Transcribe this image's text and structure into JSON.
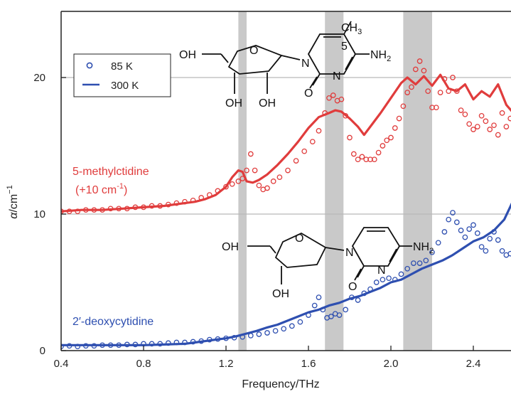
{
  "chart_data": {
    "type": "scatter",
    "xlabel": "Frequency/THz",
    "ylabel_main": "α",
    "ylabel_unit": "/cm",
    "ylabel_exp": "−1",
    "xlim": [
      0.4,
      2.6
    ],
    "ylim": [
      0,
      25
    ],
    "x_ticks": [
      0.4,
      0.8,
      1.2,
      1.6,
      2.0,
      2.4
    ],
    "y_ticks": [
      0,
      10,
      20
    ],
    "gridlines_y": [
      10,
      20
    ],
    "shaded_bands": [
      [
        1.26,
        1.3
      ],
      [
        1.68,
        1.77
      ],
      [
        2.06,
        2.2
      ]
    ],
    "legend": {
      "placement": "top-left",
      "entries": [
        {
          "label": "85 K",
          "marker": "circle"
        },
        {
          "label": "300 K",
          "marker": "line"
        }
      ]
    },
    "series": [
      {
        "label": "5-methylctidine",
        "label_note_prefix": "(+10 cm",
        "label_note_exp": "-1",
        "label_note_suffix": ")",
        "color": "#e03c3c",
        "temperature": "300 K",
        "style": "line",
        "x": [
          0.4,
          0.5,
          0.6,
          0.7,
          0.8,
          0.9,
          1.0,
          1.05,
          1.1,
          1.15,
          1.2,
          1.23,
          1.26,
          1.28,
          1.3,
          1.33,
          1.36,
          1.4,
          1.45,
          1.5,
          1.55,
          1.6,
          1.65,
          1.7,
          1.73,
          1.76,
          1.8,
          1.84,
          1.87,
          1.9,
          1.95,
          2.0,
          2.05,
          2.08,
          2.12,
          2.16,
          2.2,
          2.24,
          2.28,
          2.32,
          2.36,
          2.4,
          2.44,
          2.48,
          2.52,
          2.56,
          2.6
        ],
        "y": [
          10.2,
          10.3,
          10.3,
          10.4,
          10.5,
          10.6,
          10.8,
          10.9,
          11.1,
          11.4,
          12.0,
          12.7,
          13.2,
          13.1,
          12.4,
          12.3,
          12.5,
          12.9,
          13.6,
          14.4,
          15.3,
          16.3,
          17.1,
          17.4,
          17.6,
          17.5,
          17.0,
          16.4,
          15.8,
          16.4,
          17.4,
          18.5,
          19.6,
          20.0,
          19.5,
          20.1,
          19.4,
          20.2,
          19.2,
          19.0,
          19.5,
          18.4,
          19.0,
          18.6,
          19.5,
          18.0,
          17.3
        ]
      },
      {
        "label": "5-methylctidine 85 K",
        "color": "#e03c3c",
        "temperature": "85 K",
        "style": "circle",
        "x": [
          0.4,
          0.44,
          0.48,
          0.52,
          0.56,
          0.6,
          0.64,
          0.68,
          0.72,
          0.76,
          0.8,
          0.84,
          0.88,
          0.92,
          0.96,
          1.0,
          1.04,
          1.08,
          1.12,
          1.16,
          1.2,
          1.23,
          1.26,
          1.28,
          1.3,
          1.32,
          1.34,
          1.36,
          1.38,
          1.4,
          1.43,
          1.46,
          1.5,
          1.54,
          1.58,
          1.62,
          1.65,
          1.68,
          1.7,
          1.72,
          1.74,
          1.76,
          1.78,
          1.8,
          1.82,
          1.84,
          1.86,
          1.88,
          1.9,
          1.92,
          1.94,
          1.96,
          1.98,
          2.0,
          2.02,
          2.04,
          2.06,
          2.08,
          2.1,
          2.12,
          2.14,
          2.16,
          2.18,
          2.2,
          2.22,
          2.24,
          2.26,
          2.28,
          2.3,
          2.32,
          2.34,
          2.36,
          2.38,
          2.4,
          2.42,
          2.44,
          2.46,
          2.48,
          2.5,
          2.52,
          2.54,
          2.56,
          2.58,
          2.6
        ],
        "y": [
          10.2,
          10.2,
          10.2,
          10.3,
          10.3,
          10.3,
          10.4,
          10.4,
          10.4,
          10.5,
          10.5,
          10.6,
          10.6,
          10.7,
          10.8,
          10.9,
          11.0,
          11.2,
          11.4,
          11.7,
          12.0,
          12.2,
          12.4,
          12.6,
          13.2,
          14.4,
          13.2,
          12.1,
          11.8,
          11.9,
          12.4,
          12.7,
          13.2,
          13.9,
          14.6,
          15.3,
          16.1,
          17.4,
          18.5,
          18.7,
          18.3,
          18.4,
          17.2,
          15.6,
          14.4,
          14.0,
          14.2,
          14.0,
          14.0,
          14.0,
          14.5,
          15.0,
          15.4,
          15.6,
          16.3,
          17.0,
          17.9,
          18.9,
          19.3,
          20.6,
          21.2,
          20.5,
          19.0,
          17.8,
          17.8,
          18.9,
          19.9,
          19.0,
          20.0,
          19.0,
          17.6,
          17.3,
          16.6,
          16.2,
          16.4,
          17.2,
          16.8,
          16.2,
          16.5,
          15.8,
          17.4,
          16.4,
          17.0,
          18.1
        ]
      },
      {
        "label": "2′-deoxycytidine",
        "color": "#2e4fb0",
        "temperature": "300 K",
        "style": "line",
        "x": [
          0.4,
          0.5,
          0.6,
          0.7,
          0.8,
          0.9,
          1.0,
          1.05,
          1.1,
          1.15,
          1.2,
          1.25,
          1.3,
          1.35,
          1.4,
          1.45,
          1.5,
          1.55,
          1.6,
          1.65,
          1.7,
          1.75,
          1.8,
          1.85,
          1.9,
          1.95,
          2.0,
          2.05,
          2.1,
          2.15,
          2.2,
          2.25,
          2.3,
          2.35,
          2.4,
          2.45,
          2.5,
          2.55,
          2.6
        ],
        "y": [
          0.4,
          0.4,
          0.4,
          0.4,
          0.4,
          0.45,
          0.5,
          0.6,
          0.7,
          0.8,
          0.9,
          1.05,
          1.25,
          1.45,
          1.7,
          1.9,
          2.2,
          2.5,
          2.8,
          3.0,
          3.3,
          3.5,
          3.8,
          4.0,
          4.3,
          4.6,
          5.0,
          5.2,
          5.6,
          6.0,
          6.3,
          6.6,
          7.0,
          7.5,
          8.0,
          8.3,
          8.8,
          9.6,
          11.2
        ]
      },
      {
        "label": "2′-deoxycytidine 85 K",
        "color": "#2e4fb0",
        "temperature": "85 K",
        "style": "circle",
        "x": [
          0.4,
          0.44,
          0.48,
          0.52,
          0.56,
          0.6,
          0.64,
          0.68,
          0.72,
          0.76,
          0.8,
          0.84,
          0.88,
          0.92,
          0.96,
          1.0,
          1.04,
          1.08,
          1.12,
          1.16,
          1.2,
          1.24,
          1.28,
          1.32,
          1.36,
          1.4,
          1.44,
          1.48,
          1.52,
          1.56,
          1.6,
          1.63,
          1.65,
          1.67,
          1.69,
          1.71,
          1.73,
          1.75,
          1.78,
          1.81,
          1.84,
          1.87,
          1.9,
          1.93,
          1.96,
          1.99,
          2.02,
          2.05,
          2.08,
          2.11,
          2.14,
          2.17,
          2.2,
          2.23,
          2.26,
          2.28,
          2.3,
          2.32,
          2.34,
          2.36,
          2.38,
          2.4,
          2.42,
          2.44,
          2.46,
          2.48,
          2.5,
          2.52,
          2.54,
          2.56,
          2.58,
          2.6
        ],
        "y": [
          0.3,
          0.35,
          0.3,
          0.35,
          0.35,
          0.4,
          0.4,
          0.4,
          0.45,
          0.45,
          0.5,
          0.5,
          0.5,
          0.55,
          0.6,
          0.6,
          0.65,
          0.7,
          0.8,
          0.85,
          0.9,
          0.95,
          1.0,
          1.1,
          1.2,
          1.3,
          1.45,
          1.6,
          1.8,
          2.1,
          2.6,
          3.3,
          3.9,
          3.0,
          2.4,
          2.5,
          2.7,
          2.6,
          3.0,
          3.9,
          3.7,
          4.2,
          4.5,
          5.0,
          5.2,
          5.3,
          5.2,
          5.6,
          6.0,
          6.4,
          6.4,
          6.6,
          7.2,
          7.9,
          8.7,
          9.6,
          10.1,
          9.4,
          8.8,
          8.3,
          8.9,
          9.2,
          8.6,
          7.6,
          7.3,
          8.2,
          8.7,
          8.1,
          7.3,
          7.0,
          7.1,
          7.0
        ]
      }
    ]
  },
  "molecules": {
    "top": {
      "oh_5prime": "OH",
      "ring_o": "O",
      "n1": "N",
      "methyl": "CH",
      "methyl_sub": "3",
      "position": "5",
      "amine": "NH",
      "amine_sub": "2",
      "n3": "N",
      "carbonyl_o": "O",
      "oh_3prime": "OH",
      "oh_2prime": "OH"
    },
    "bottom": {
      "oh_5prime": "OH",
      "ring_o": "O",
      "n1": "N",
      "amine": "NH",
      "amine_sub": "2",
      "n3": "N",
      "carbonyl_o": "O",
      "oh_3prime": "OH"
    }
  },
  "colors": {
    "red": "#e03c3c",
    "blue": "#2e4fb0",
    "band": "#c9c9c9",
    "grid": "#b9b9b9"
  }
}
